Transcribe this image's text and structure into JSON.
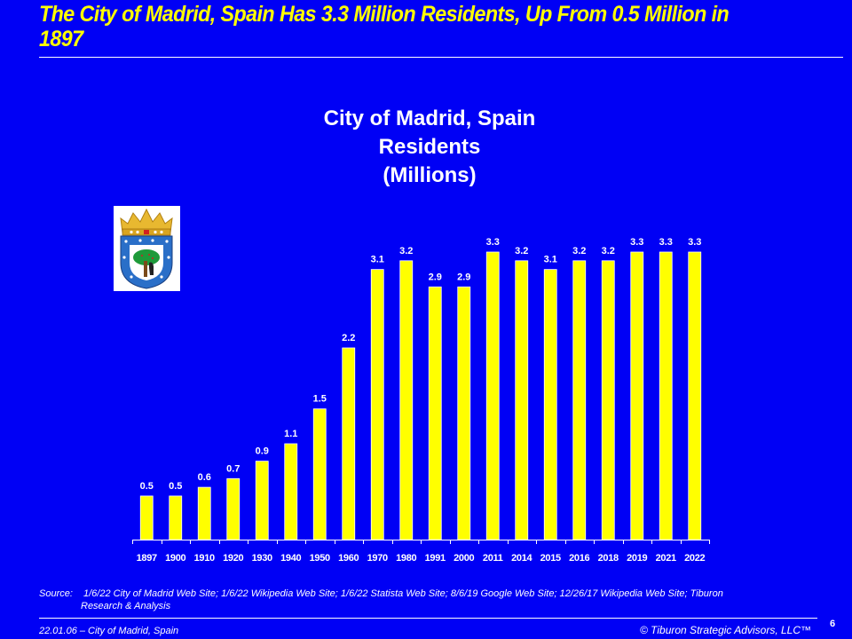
{
  "slide": {
    "title": "The City of Madrid, Spain Has 3.3 Million Residents, Up From 0.5 Million in 1897",
    "source_label": "Source:",
    "source_line1": "1/6/22 City of Madrid Web Site; 1/6/22 Wikipedia Web Site; 1/6/22 Statista Web Site; 8/6/19 Google Web Site; 12/26/17 Wikipedia Web Site; Tiburon",
    "source_line2": "Research & Analysis",
    "footer_left": "22.01.06 – City of Madrid,  Spain",
    "footer_right": "© Tiburon Strategic Advisors, LLC™",
    "page_number": "6"
  },
  "colors": {
    "background": "#0000f5",
    "bar": "#ffff00",
    "title": "#ffff00",
    "text": "#ffffff"
  },
  "chart_data": {
    "type": "bar",
    "title_lines": [
      "City of Madrid, Spain",
      "Residents",
      "(Millions)"
    ],
    "xlabel": "",
    "ylabel": "",
    "categories": [
      "1897",
      "1900",
      "1910",
      "1920",
      "1930",
      "1940",
      "1950",
      "1960",
      "1970",
      "1980",
      "1991",
      "2000",
      "2011",
      "2014",
      "2015",
      "2016",
      "2018",
      "2019",
      "2021",
      "2022"
    ],
    "values": [
      0.5,
      0.5,
      0.6,
      0.7,
      0.9,
      1.1,
      1.5,
      2.2,
      3.1,
      3.2,
      2.9,
      2.9,
      3.3,
      3.2,
      3.1,
      3.2,
      3.2,
      3.3,
      3.3,
      3.3
    ],
    "data_labels": [
      "0.5",
      "0.5",
      "0.6",
      "0.7",
      "0.9",
      "1.1",
      "1.5",
      "2.2",
      "3.1",
      "3.2",
      "2.9",
      "2.9",
      "3.3",
      "3.2",
      "3.1",
      "3.2",
      "3.2",
      "3.3",
      "3.3",
      "3.3"
    ],
    "ylim": [
      0,
      3.3
    ],
    "grid": false,
    "legend": "none"
  }
}
